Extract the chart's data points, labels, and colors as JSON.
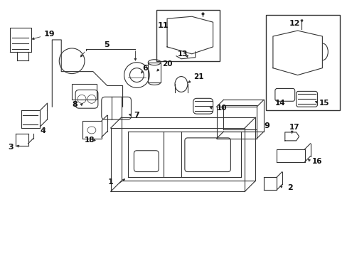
{
  "bg_color": "#ffffff",
  "line_color": "#333333",
  "label_color": "#111111",
  "title": ""
}
